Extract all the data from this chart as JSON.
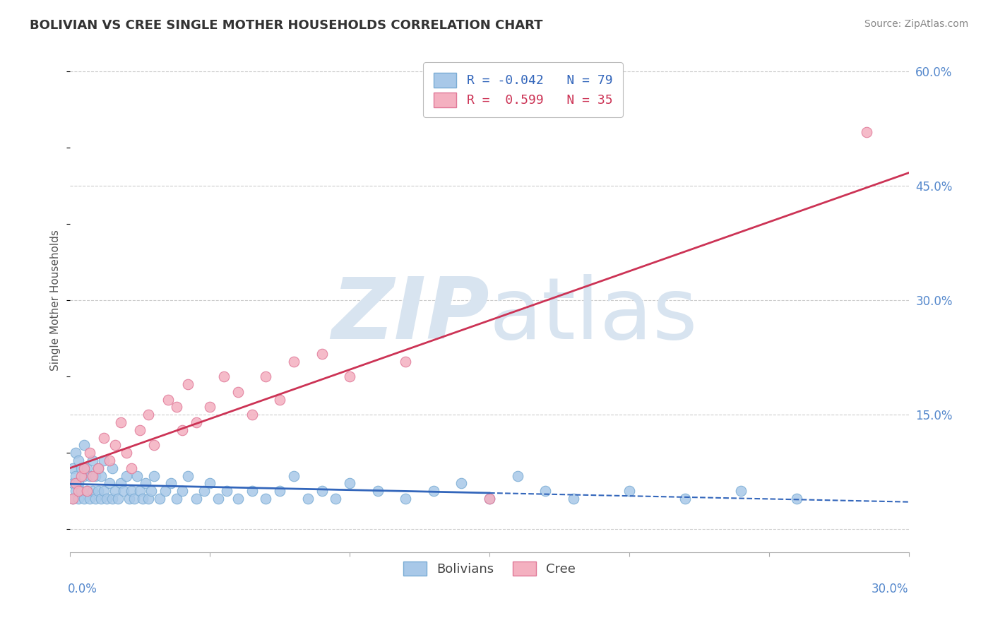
{
  "title": "BOLIVIAN VS CREE SINGLE MOTHER HOUSEHOLDS CORRELATION CHART",
  "source": "Source: ZipAtlas.com",
  "ylabel": "Single Mother Households",
  "right_yticks": [
    0.0,
    0.15,
    0.3,
    0.45,
    0.6
  ],
  "right_yticklabels": [
    "",
    "15.0%",
    "30.0%",
    "45.0%",
    "60.0%"
  ],
  "xmin": 0.0,
  "xmax": 0.3,
  "ymin": -0.03,
  "ymax": 0.63,
  "bolivian_R": -0.042,
  "bolivian_N": 79,
  "cree_R": 0.599,
  "cree_N": 35,
  "bolivian_color": "#a8c8e8",
  "bolivian_edge": "#7aacd4",
  "cree_color": "#f4b0c0",
  "cree_edge": "#e07898",
  "trend_bolivian_color": "#3366bb",
  "trend_cree_color": "#cc3355",
  "watermark_color": "#d8e4f0",
  "background_color": "#ffffff",
  "grid_color": "#cccccc",
  "bolivian_x": [
    0.001,
    0.001,
    0.001,
    0.002,
    0.002,
    0.002,
    0.003,
    0.003,
    0.003,
    0.004,
    0.004,
    0.005,
    0.005,
    0.005,
    0.006,
    0.006,
    0.007,
    0.007,
    0.008,
    0.008,
    0.009,
    0.009,
    0.01,
    0.01,
    0.011,
    0.011,
    0.012,
    0.012,
    0.013,
    0.014,
    0.015,
    0.015,
    0.016,
    0.017,
    0.018,
    0.019,
    0.02,
    0.021,
    0.022,
    0.023,
    0.024,
    0.025,
    0.026,
    0.027,
    0.028,
    0.029,
    0.03,
    0.032,
    0.034,
    0.036,
    0.038,
    0.04,
    0.042,
    0.045,
    0.048,
    0.05,
    0.053,
    0.056,
    0.06,
    0.065,
    0.07,
    0.075,
    0.08,
    0.085,
    0.09,
    0.095,
    0.1,
    0.11,
    0.12,
    0.13,
    0.14,
    0.15,
    0.16,
    0.17,
    0.18,
    0.2,
    0.22,
    0.24,
    0.26
  ],
  "bolivian_y": [
    0.04,
    0.06,
    0.08,
    0.05,
    0.07,
    0.1,
    0.04,
    0.06,
    0.09,
    0.05,
    0.08,
    0.04,
    0.07,
    0.11,
    0.05,
    0.08,
    0.04,
    0.07,
    0.05,
    0.09,
    0.04,
    0.07,
    0.05,
    0.08,
    0.04,
    0.07,
    0.05,
    0.09,
    0.04,
    0.06,
    0.04,
    0.08,
    0.05,
    0.04,
    0.06,
    0.05,
    0.07,
    0.04,
    0.05,
    0.04,
    0.07,
    0.05,
    0.04,
    0.06,
    0.04,
    0.05,
    0.07,
    0.04,
    0.05,
    0.06,
    0.04,
    0.05,
    0.07,
    0.04,
    0.05,
    0.06,
    0.04,
    0.05,
    0.04,
    0.05,
    0.04,
    0.05,
    0.07,
    0.04,
    0.05,
    0.04,
    0.06,
    0.05,
    0.04,
    0.05,
    0.06,
    0.04,
    0.07,
    0.05,
    0.04,
    0.05,
    0.04,
    0.05,
    0.04
  ],
  "cree_x": [
    0.001,
    0.002,
    0.003,
    0.004,
    0.005,
    0.006,
    0.007,
    0.008,
    0.01,
    0.012,
    0.014,
    0.016,
    0.018,
    0.02,
    0.022,
    0.025,
    0.028,
    0.03,
    0.035,
    0.038,
    0.04,
    0.042,
    0.045,
    0.05,
    0.055,
    0.06,
    0.065,
    0.07,
    0.075,
    0.08,
    0.09,
    0.1,
    0.12,
    0.15,
    0.285
  ],
  "cree_y": [
    0.04,
    0.06,
    0.05,
    0.07,
    0.08,
    0.05,
    0.1,
    0.07,
    0.08,
    0.12,
    0.09,
    0.11,
    0.14,
    0.1,
    0.08,
    0.13,
    0.15,
    0.11,
    0.17,
    0.16,
    0.13,
    0.19,
    0.14,
    0.16,
    0.2,
    0.18,
    0.15,
    0.2,
    0.17,
    0.22,
    0.23,
    0.2,
    0.22,
    0.04,
    0.52
  ]
}
